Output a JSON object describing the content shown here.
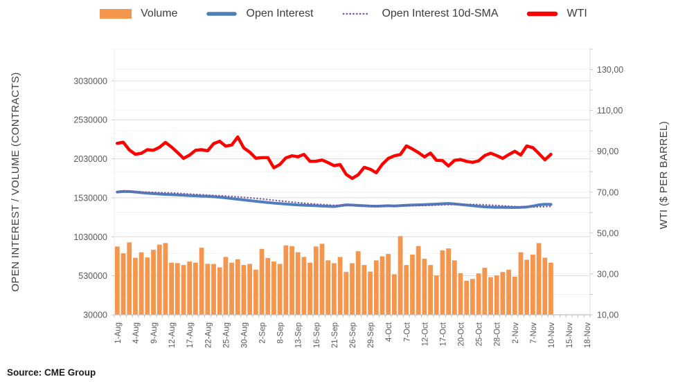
{
  "legend": {
    "items": [
      {
        "label": "Volume",
        "swatch": "bar",
        "color": "#F4964D"
      },
      {
        "label": "Open Interest",
        "swatch": "line",
        "color": "#4E7EBC"
      },
      {
        "label": "Open Interest 10d-SMA",
        "swatch": "dotted-line",
        "color": "#7B5AA6"
      },
      {
        "label": "WTI",
        "swatch": "line-thick",
        "color": "#FF0000"
      }
    ]
  },
  "source_note": "Source: CME Group",
  "chart_data": {
    "type": "combo-bar-line",
    "title": "",
    "x_axis": {
      "tick_labels": [
        "1-Aug",
        "4-Aug",
        "9-Aug",
        "12-Aug",
        "17-Aug",
        "22-Aug",
        "25-Aug",
        "30-Aug",
        "2-Sep",
        "8-Sep",
        "13-Sep",
        "16-Sep",
        "21-Sep",
        "26-Sep",
        "29-Sep",
        "4-Oct",
        "7-Oct",
        "12-Oct",
        "17-Oct",
        "20-Oct",
        "25-Oct",
        "28-Oct",
        "2-Nov",
        "7-Nov",
        "10-Nov",
        "15-Nov",
        "18-Nov"
      ],
      "label_every_n_slots": 3,
      "total_slots": 79
    },
    "left_axis": {
      "title": "OPEN INTEREST / VOLUME (CONTRACTS)",
      "min": 30000,
      "max": 3437000,
      "ticks": [
        {
          "label": "3030000",
          "value": 3030000
        },
        {
          "label": "2530000",
          "value": 2530000
        },
        {
          "label": "2030000",
          "value": 2030000
        },
        {
          "label": "1530000",
          "value": 1530000
        },
        {
          "label": "1030000",
          "value": 1030000
        },
        {
          "label": "530000",
          "value": 530000
        },
        {
          "label": "30000",
          "value": 30000
        }
      ]
    },
    "right_axis": {
      "title": "WTI ($ PER BARREL)",
      "min": 10,
      "max": 140,
      "minor_step": 10,
      "ticks": [
        {
          "label": "130,00",
          "value": 130
        },
        {
          "label": "110,00",
          "value": 110
        },
        {
          "label": "90,00",
          "value": 90
        },
        {
          "label": "70,00",
          "value": 70
        },
        {
          "label": "50,00",
          "value": 50
        },
        {
          "label": "30,00",
          "value": 30
        },
        {
          "label": "10,00",
          "value": 10
        }
      ]
    },
    "grid": {
      "minor_color": "#F2F2F2",
      "major_color": "#DBDBDB"
    },
    "categories": [
      "1-Aug",
      "2-Aug",
      "3-Aug",
      "4-Aug",
      "5-Aug",
      "8-Aug",
      "9-Aug",
      "10-Aug",
      "11-Aug",
      "12-Aug",
      "15-Aug",
      "16-Aug",
      "17-Aug",
      "18-Aug",
      "19-Aug",
      "22-Aug",
      "23-Aug",
      "24-Aug",
      "25-Aug",
      "26-Aug",
      "29-Aug",
      "30-Aug",
      "31-Aug",
      "1-Sep",
      "2-Sep",
      "6-Sep",
      "7-Sep",
      "8-Sep",
      "9-Sep",
      "12-Sep",
      "13-Sep",
      "14-Sep",
      "15-Sep",
      "16-Sep",
      "19-Sep",
      "20-Sep",
      "21-Sep",
      "22-Sep",
      "23-Sep",
      "26-Sep",
      "27-Sep",
      "28-Sep",
      "29-Sep",
      "30-Sep",
      "3-Oct",
      "4-Oct",
      "5-Oct",
      "6-Oct",
      "7-Oct",
      "10-Oct",
      "11-Oct",
      "12-Oct",
      "13-Oct",
      "14-Oct",
      "17-Oct",
      "18-Oct",
      "19-Oct",
      "20-Oct",
      "21-Oct",
      "24-Oct",
      "25-Oct",
      "26-Oct",
      "27-Oct",
      "28-Oct",
      "31-Oct",
      "1-Nov",
      "2-Nov",
      "3-Nov",
      "4-Nov",
      "7-Nov",
      "8-Nov",
      "9-Nov",
      "10-Nov"
    ],
    "series": [
      {
        "name": "Volume",
        "type": "bar",
        "axis": "left",
        "color": "#F4964D",
        "values": [
          905000,
          818000,
          958000,
          760000,
          830000,
          765000,
          862000,
          930000,
          950000,
          698000,
          692000,
          668000,
          712000,
          698000,
          890000,
          683000,
          680000,
          638000,
          772000,
          698000,
          742000,
          668000,
          682000,
          608000,
          875000,
          758000,
          712000,
          682000,
          920000,
          910000,
          832000,
          772000,
          698000,
          905000,
          940000,
          728000,
          691000,
          771000,
          578000,
          691000,
          845000,
          668000,
          584000,
          727000,
          780000,
          810000,
          549000,
          1038000,
          668000,
          801000,
          911000,
          748000,
          668000,
          534000,
          855000,
          881000,
          727000,
          564000,
          466000,
          490000,
          561000,
          632000,
          513000,
          534000,
          578000,
          608000,
          519000,
          831000,
          735000,
          801000,
          949000,
          762000,
          697000
        ]
      },
      {
        "name": "Open Interest",
        "type": "line",
        "axis": "left",
        "color": "#4E7EBC",
        "values": [
          1604000,
          1612000,
          1610000,
          1604000,
          1596000,
          1590000,
          1584000,
          1578000,
          1574000,
          1570000,
          1567000,
          1563000,
          1558000,
          1555000,
          1551000,
          1548000,
          1544000,
          1537000,
          1529000,
          1521000,
          1512000,
          1503000,
          1494000,
          1485000,
          1477000,
          1469000,
          1462000,
          1456000,
          1450000,
          1444000,
          1439000,
          1435000,
          1432000,
          1428000,
          1424000,
          1420000,
          1418000,
          1428000,
          1440000,
          1437000,
          1432000,
          1428000,
          1424000,
          1422000,
          1425000,
          1428000,
          1426000,
          1430000,
          1434000,
          1437000,
          1440000,
          1443000,
          1446000,
          1450000,
          1454000,
          1458000,
          1452000,
          1444000,
          1436000,
          1428000,
          1420000,
          1414000,
          1410000,
          1408000,
          1407000,
          1406000,
          1405000,
          1408000,
          1412000,
          1424000,
          1440000,
          1448000,
          1446000
        ]
      },
      {
        "name": "Open Interest 10d-SMA",
        "type": "dotted-line",
        "axis": "left",
        "color": "#7B5AA6",
        "derived_from": "10-day simple moving average of Open Interest"
      },
      {
        "name": "WTI",
        "type": "line",
        "axis": "right",
        "color": "#FF0000",
        "values": [
          93.89,
          94.42,
          90.66,
          88.54,
          89.01,
          90.76,
          90.5,
          91.93,
          94.34,
          92.09,
          89.41,
          86.53,
          88.11,
          90.5,
          90.77,
          90.23,
          93.74,
          94.89,
          92.52,
          93.06,
          97.01,
          91.64,
          89.55,
          86.61,
          86.87,
          86.88,
          81.94,
          83.54,
          86.79,
          87.78,
          87.31,
          88.48,
          85.1,
          85.11,
          85.73,
          84.45,
          82.94,
          83.49,
          78.74,
          76.71,
          78.5,
          82.15,
          81.23,
          79.49,
          83.63,
          86.52,
          87.76,
          88.45,
          92.64,
          91.13,
          89.35,
          87.27,
          89.11,
          85.61,
          85.46,
          82.82,
          85.55,
          85.98,
          85.05,
          84.58,
          85.32,
          87.91,
          89.08,
          87.9,
          86.53,
          88.37,
          90.0,
          88.17,
          92.61,
          91.79,
          88.91,
          85.83,
          88.5
        ]
      }
    ]
  }
}
